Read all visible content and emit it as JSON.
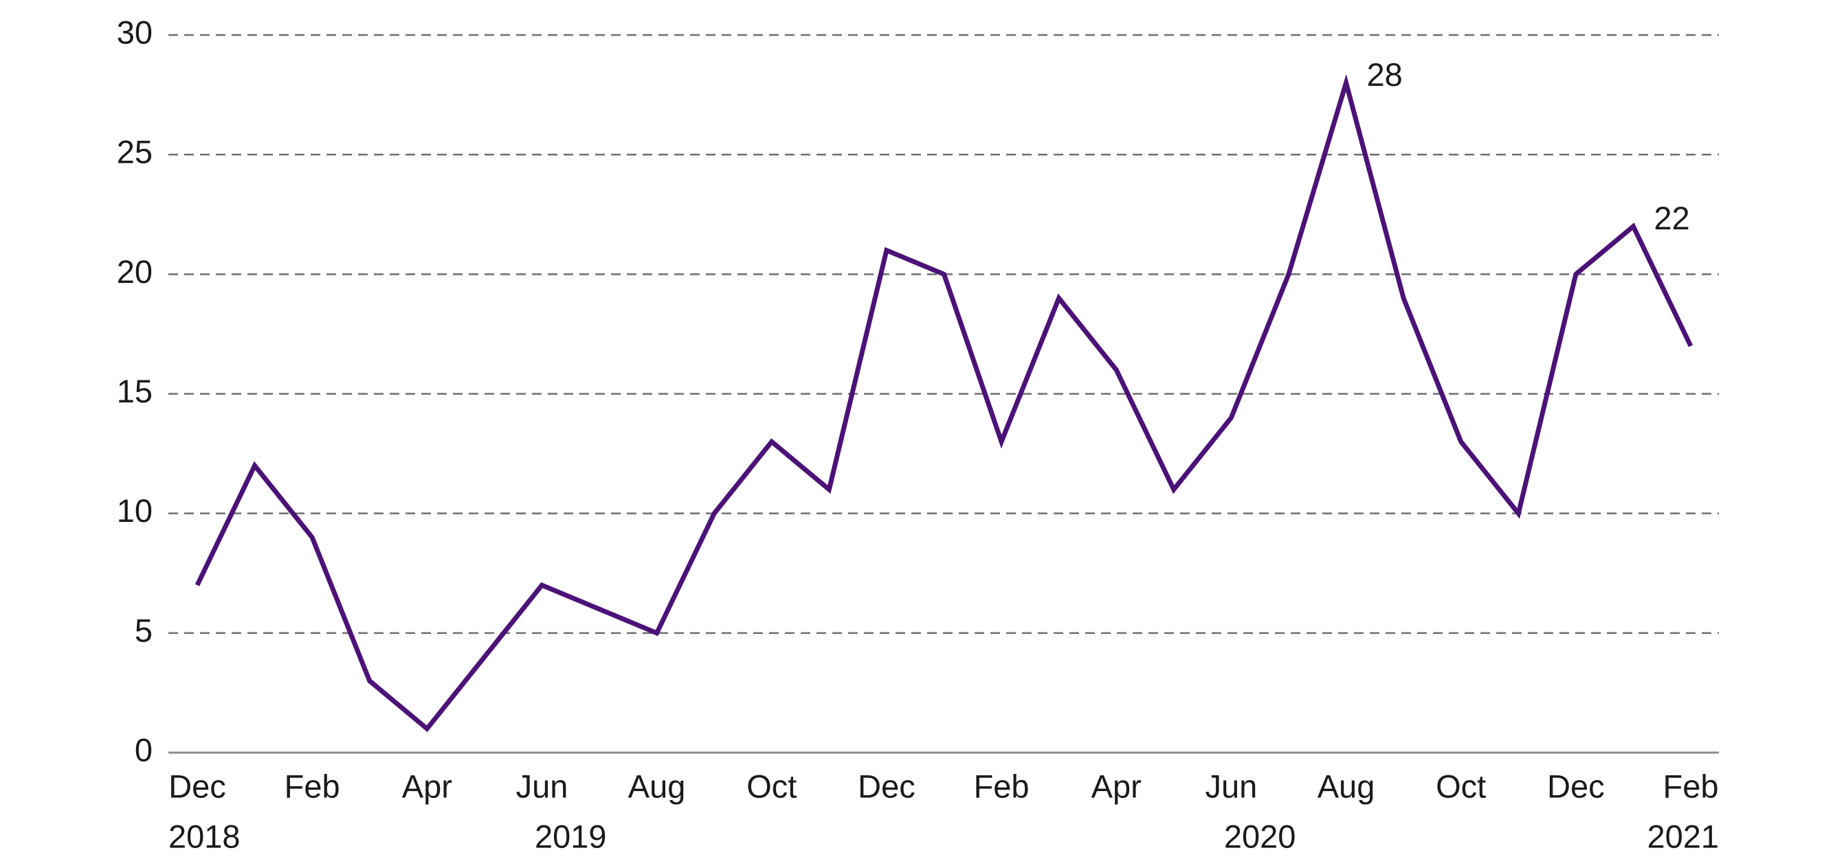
{
  "chart_data": {
    "type": "line",
    "categories": [
      "Dec",
      null,
      "Feb",
      null,
      "Apr",
      null,
      "Jun",
      null,
      "Aug",
      null,
      "Oct",
      null,
      "Dec",
      null,
      "Feb",
      null,
      "Apr",
      null,
      "Jun",
      null,
      "Aug",
      null,
      "Oct",
      null,
      "Dec",
      null,
      "Feb"
    ],
    "year_groups": [
      {
        "label": "2018",
        "months": 1
      },
      {
        "label": "2019",
        "months": 12
      },
      {
        "label": "2020",
        "months": 12
      },
      {
        "label": "2021",
        "months": 2
      }
    ],
    "series": [
      {
        "name": null,
        "color": "#4b1277",
        "values": [
          7,
          12,
          9,
          3,
          1,
          4,
          7,
          6,
          5,
          10,
          13,
          11,
          21,
          20,
          13,
          19,
          16,
          11,
          14,
          20,
          28,
          19,
          13,
          10,
          20,
          22,
          17
        ],
        "value_labels": [
          null,
          null,
          null,
          null,
          null,
          null,
          null,
          null,
          null,
          null,
          null,
          null,
          null,
          null,
          null,
          null,
          null,
          null,
          null,
          null,
          "28",
          null,
          null,
          null,
          null,
          "22",
          null
        ]
      }
    ],
    "ylim": [
      0,
      30
    ],
    "yticks": [
      0,
      5,
      10,
      15,
      20,
      25,
      30
    ],
    "grid": true
  }
}
